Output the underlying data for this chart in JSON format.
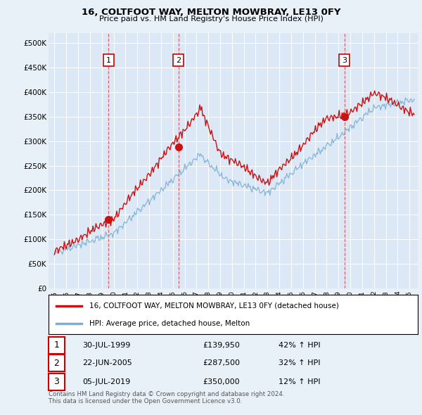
{
  "title": "16, COLTFOOT WAY, MELTON MOWBRAY, LE13 0FY",
  "subtitle": "Price paid vs. HM Land Registry's House Price Index (HPI)",
  "background_color": "#e8f0f8",
  "plot_bg": "#dce8f5",
  "hpi_line_color": "#7bafd4",
  "price_line_color": "#cc1111",
  "vline_color": "#dd4444",
  "marker_box_color": "#cc0000",
  "ylim": [
    0,
    520000
  ],
  "yticks": [
    0,
    50000,
    100000,
    150000,
    200000,
    250000,
    300000,
    350000,
    400000,
    450000,
    500000
  ],
  "ytick_labels": [
    "£0",
    "£50K",
    "£100K",
    "£150K",
    "£200K",
    "£250K",
    "£300K",
    "£350K",
    "£400K",
    "£450K",
    "£500K"
  ],
  "xlim_start": 1994.5,
  "xlim_end": 2025.7,
  "sale_t": [
    1999.58,
    2005.47,
    2019.51
  ],
  "sale_prices": [
    139950,
    287500,
    350000
  ],
  "sale_labels": [
    "1",
    "2",
    "3"
  ],
  "sale_date_labels": [
    "30-JUL-1999",
    "22-JUN-2005",
    "05-JUL-2019"
  ],
  "sale_price_labels": [
    "£139,950",
    "£287,500",
    "£350,000"
  ],
  "sale_pct": [
    "42% ↑ HPI",
    "32% ↑ HPI",
    "12% ↑ HPI"
  ],
  "legend_entries": [
    "16, COLTFOOT WAY, MELTON MOWBRAY, LE13 0FY (detached house)",
    "HPI: Average price, detached house, Melton"
  ],
  "footer": "Contains HM Land Registry data © Crown copyright and database right 2024.\nThis data is licensed under the Open Government Licence v3.0."
}
